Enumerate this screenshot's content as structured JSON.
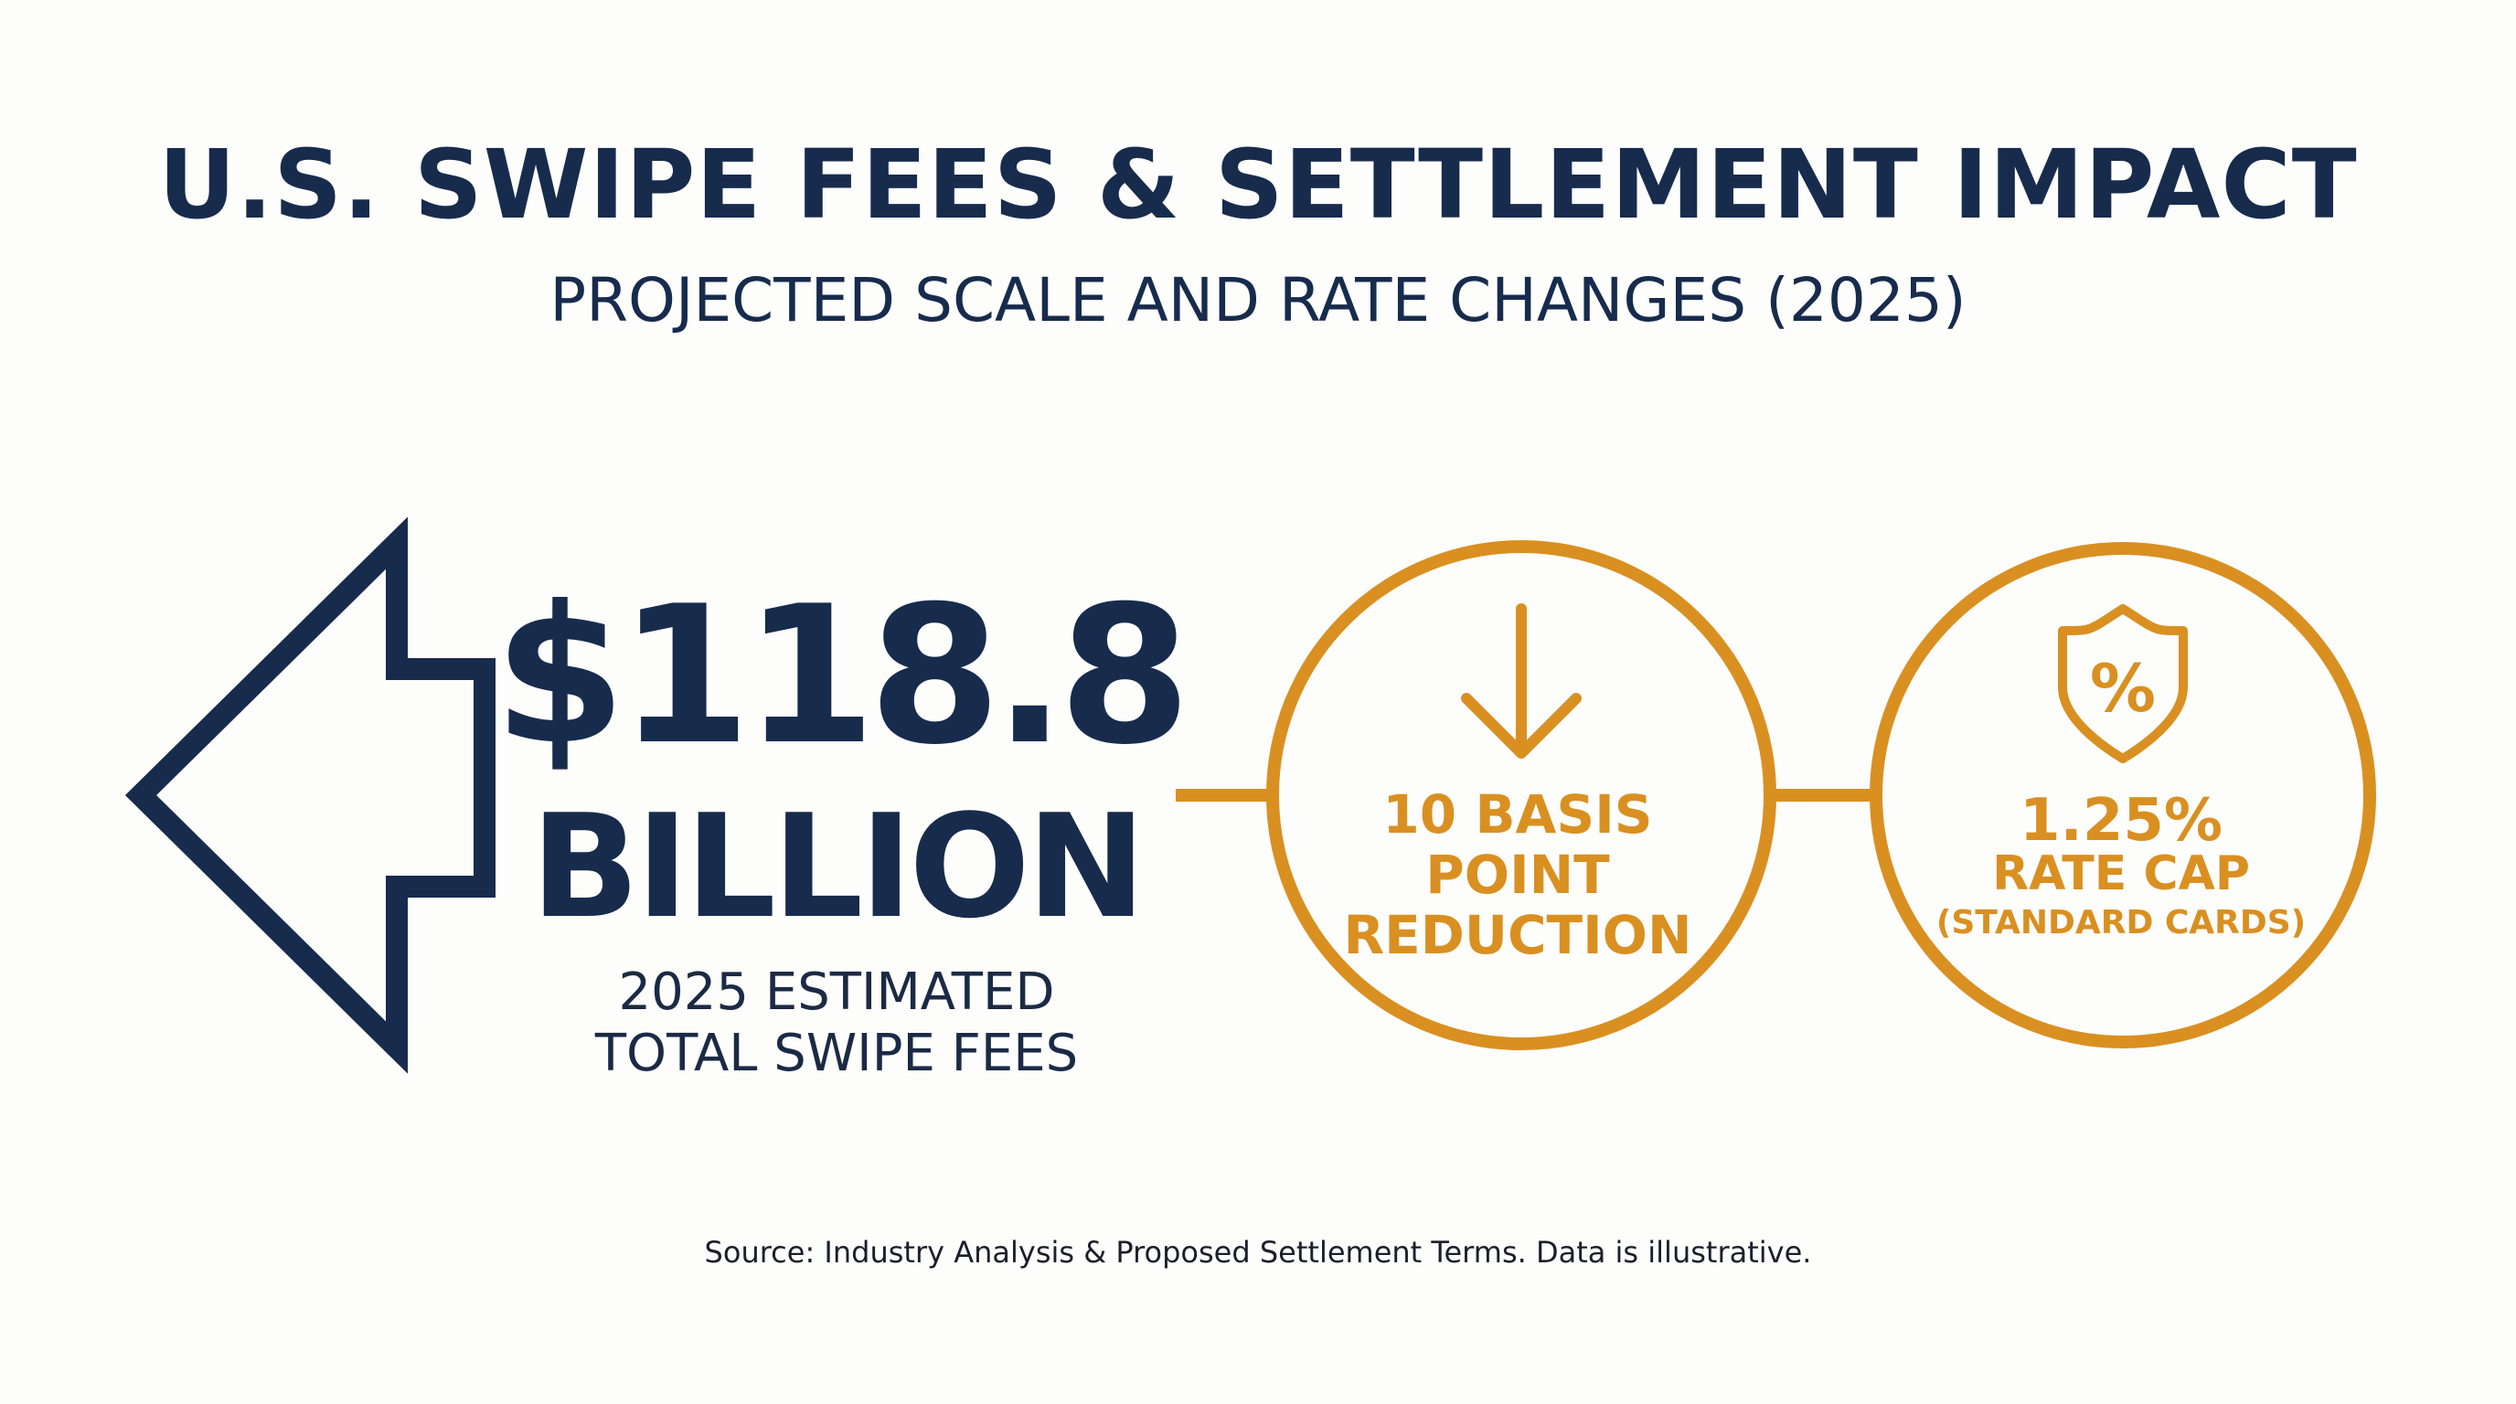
{
  "colors": {
    "navy": "#172b4d",
    "gold": "#d99021",
    "background": "#fdfdfc",
    "text_dark": "#1b1f2a"
  },
  "header": {
    "title": "U.S. SWIPE FEES & SETTLEMENT IMPACT",
    "subtitle": "PROJECTED SCALE AND RATE CHANGES (2025)"
  },
  "total_fees": {
    "value": "$118.8",
    "unit": "BILLION",
    "caption_line1": "2025 ESTIMATED",
    "caption_line2": "TOTAL SWIPE FEES",
    "icon": "left-arrow-outline-icon"
  },
  "reduction": {
    "line1": "10 BASIS",
    "line2": "POINT",
    "line3": "REDUCTION",
    "icon": "arrow-down-icon"
  },
  "rate_cap": {
    "value": "1.25%",
    "label": "RATE CAP",
    "note": "(STANDARD CARDS)",
    "icon": "shield-percent-icon",
    "icon_glyph": "%"
  },
  "footer": {
    "source": "Source: Industry Analysis & Proposed Settlement Terms. Data is illustrative."
  }
}
